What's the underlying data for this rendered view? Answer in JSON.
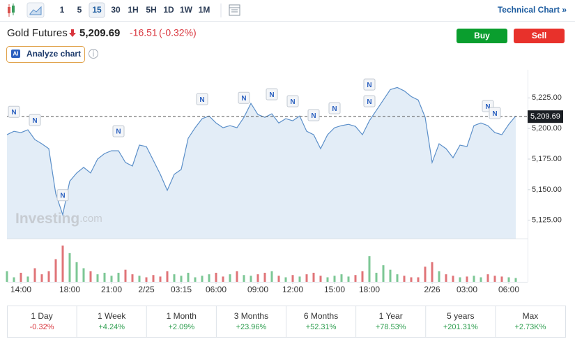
{
  "toolbar": {
    "intervals": [
      "1",
      "5",
      "15",
      "30",
      "1H",
      "5H",
      "1D",
      "1W",
      "1M"
    ],
    "selected_interval": "15",
    "technical_chart": "Technical Chart »"
  },
  "header": {
    "name": "Gold Futures",
    "price": "5,209.69",
    "change": "-16.51",
    "change_pct": "(-0.32%)",
    "buy": "Buy",
    "sell": "Sell",
    "ai_badge": "AI",
    "analyze": "Analyze chart"
  },
  "chart_data": {
    "type": "area",
    "categories": [
      null,
      null,
      "14:00",
      null,
      null,
      null,
      null,
      null,
      null,
      "18:00",
      null,
      null,
      null,
      null,
      null,
      "21:00",
      null,
      null,
      null,
      null,
      "2/25",
      null,
      null,
      null,
      null,
      "03:15",
      null,
      null,
      null,
      null,
      "06:00",
      null,
      null,
      null,
      null,
      null,
      "09:00",
      null,
      null,
      null,
      null,
      "12:00",
      null,
      null,
      null,
      null,
      null,
      "15:00",
      null,
      null,
      null,
      null,
      "18:00",
      null,
      null,
      null,
      null,
      null,
      null,
      null,
      null,
      "2/26",
      null,
      null,
      null,
      null,
      "03:00",
      null,
      null,
      null,
      null,
      null,
      "06:00",
      null
    ],
    "values": [
      5194.9,
      5197.7,
      5196.6,
      5198.9,
      5190.9,
      5187.5,
      5183.5,
      5146.6,
      5129.5,
      5156.8,
      5163.6,
      5168.2,
      5163.6,
      5175.0,
      5179.5,
      5181.8,
      5181.8,
      5172.2,
      5169.3,
      5186.4,
      5185.2,
      5173.9,
      5162.5,
      5149.4,
      5162.5,
      5166.5,
      5192.0,
      5200.6,
      5208.0,
      5210.2,
      5204.5,
      5200.6,
      5202.3,
      5200.6,
      5209.1,
      5220.5,
      5211.4,
      5209.1,
      5212.0,
      5204.5,
      5208.0,
      5206.3,
      5210.2,
      5197.7,
      5194.9,
      5183.5,
      5194.9,
      5200.6,
      5202.3,
      5203.4,
      5201.7,
      5194.9,
      5206.3,
      5214.8,
      5223.3,
      5231.8,
      5233.5,
      5230.7,
      5226.1,
      5223.3,
      5209.1,
      5172.2,
      5187.5,
      5183.5,
      5176.1,
      5186.4,
      5185.2,
      5202.3,
      5204.5,
      5202.3,
      5196.6,
      5194.9,
      5203.4,
      5210.2
    ],
    "color": "#5b8fc9",
    "fill": "#e3edf7",
    "ylim": [
      5110,
      5248
    ],
    "yticks": [
      {
        "value": 5125,
        "label": "5,125.00"
      },
      {
        "value": 5150,
        "label": "5,150.00"
      },
      {
        "value": 5175,
        "label": "5,175.00"
      },
      {
        "value": 5200,
        "label": "5,200.00"
      },
      {
        "value": 5225,
        "label": "5,225.00"
      }
    ],
    "grid": false,
    "price_line": {
      "value": 5209.69,
      "label": "5,209.69"
    },
    "watermark": {
      "brand": "Investing",
      "suffix": ".com"
    },
    "news": [
      {
        "label": "N",
        "index": 1
      },
      {
        "label": "N",
        "index": 4
      },
      {
        "label": "N",
        "index": 8
      },
      {
        "label": "N",
        "index": 16
      },
      {
        "label": "N",
        "index": 28
      },
      {
        "label": "N",
        "index": 34
      },
      {
        "label": "N",
        "index": 38
      },
      {
        "label": "N",
        "index": 41
      },
      {
        "label": "N",
        "index": 44
      },
      {
        "label": "N",
        "index": 47
      },
      {
        "label": "N",
        "index": 52
      },
      {
        "label": "N",
        "index": 52
      },
      {
        "label": "N",
        "index": 69
      },
      {
        "label": "N",
        "index": 70
      }
    ],
    "volume": [
      14,
      6,
      12,
      7,
      18,
      10,
      14,
      30,
      48,
      38,
      26,
      18,
      14,
      10,
      12,
      8,
      12,
      16,
      10,
      8,
      6,
      9,
      7,
      14,
      10,
      8,
      12,
      6,
      8,
      10,
      12,
      7,
      10,
      14,
      9,
      8,
      10,
      12,
      14,
      8,
      6,
      9,
      7,
      10,
      12,
      8,
      6,
      8,
      10,
      7,
      9,
      14,
      34,
      12,
      22,
      16,
      10,
      8,
      6,
      6,
      20,
      26,
      14,
      10,
      8,
      6,
      7,
      8,
      6,
      10,
      8,
      7,
      6,
      5
    ],
    "up_color": "#7cc795",
    "down_color": "#e07478"
  },
  "performance": [
    {
      "period": "1 Day",
      "change": "-0.32%"
    },
    {
      "period": "1 Week",
      "change": "+4.24%"
    },
    {
      "period": "1 Month",
      "change": "+2.09%"
    },
    {
      "period": "3 Months",
      "change": "+23.96%"
    },
    {
      "period": "6 Months",
      "change": "+52.31%"
    },
    {
      "period": "1 Year",
      "change": "+78.53%"
    },
    {
      "period": "5 years",
      "change": "+201.31%"
    },
    {
      "period": "Max",
      "change": "+2.73K%"
    }
  ]
}
